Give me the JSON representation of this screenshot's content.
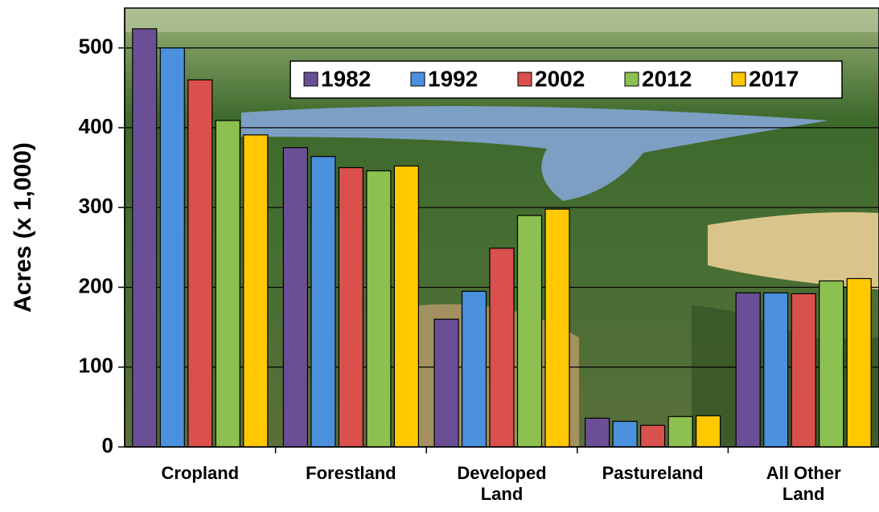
{
  "chart_data": {
    "type": "bar",
    "y_label": "Acres (x 1,000)",
    "categories": [
      "Cropland",
      "Forestland",
      "Developed Land",
      "Pastureland",
      "All Other Land"
    ],
    "series": [
      {
        "name": "1982",
        "color": "#6b4f96",
        "values": [
          524,
          375,
          160,
          36,
          193
        ]
      },
      {
        "name": "1992",
        "color": "#4a90dd",
        "values": [
          500,
          364,
          195,
          32,
          193
        ]
      },
      {
        "name": "2002",
        "color": "#d9504c",
        "values": [
          460,
          350,
          249,
          27,
          192
        ]
      },
      {
        "name": "2012",
        "color": "#8cc152",
        "values": [
          409,
          346,
          290,
          38,
          208
        ]
      },
      {
        "name": "2017",
        "color": "#ffc800",
        "values": [
          391,
          352,
          298,
          39,
          211
        ]
      }
    ],
    "ylim": [
      0,
      550
    ],
    "yticks": [
      0,
      100,
      200,
      300,
      400,
      500
    ],
    "grid": true
  }
}
